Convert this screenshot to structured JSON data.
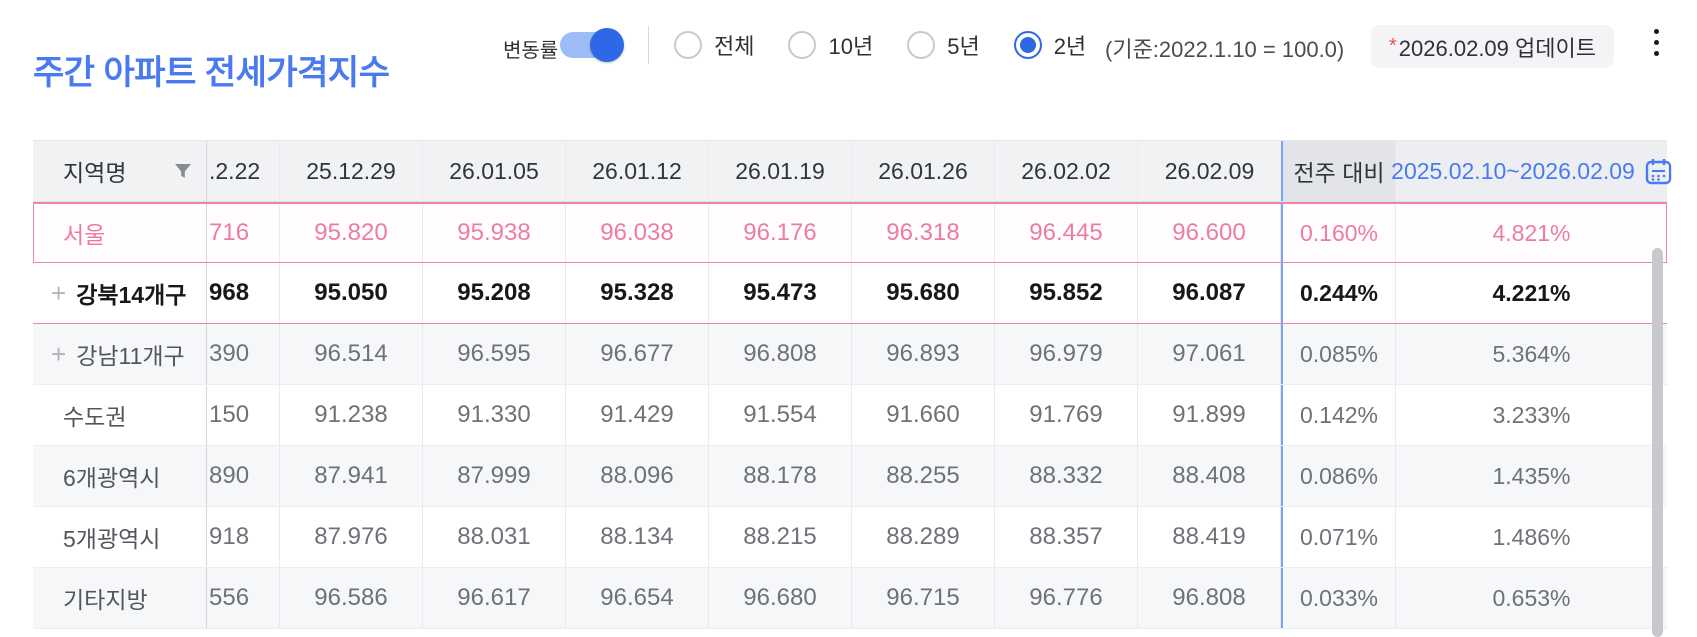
{
  "header": {
    "title": "주간 아파트 전세가격지수",
    "toggle_label": "변동률",
    "toggle_on": true,
    "periods": [
      {
        "label": "전체",
        "selected": false
      },
      {
        "label": "10년",
        "selected": false
      },
      {
        "label": "5년",
        "selected": false
      },
      {
        "label": "2년",
        "selected": true
      }
    ],
    "base_note": "(기준:2022.1.10 = 100.0)",
    "update_asterisk": "*",
    "update_text": "2026.02.09 업데이트"
  },
  "table": {
    "region_header": "지역명",
    "date_columns": [
      ".2.22",
      "25.12.29",
      "26.01.05",
      "26.01.12",
      "26.01.19",
      "26.01.26",
      "26.02.02",
      "26.02.09"
    ],
    "wow_header": "전주 대비",
    "range_header": "2025.02.10~2026.02.09",
    "rows": [
      {
        "region": "서울",
        "expandable": false,
        "style": "seoul",
        "values": [
          "716",
          "95.820",
          "95.938",
          "96.038",
          "96.176",
          "96.318",
          "96.445",
          "96.600"
        ],
        "wow": "0.160%",
        "range": "4.821%"
      },
      {
        "region": "강북14개구",
        "expandable": true,
        "style": "highlight",
        "values": [
          "968",
          "95.050",
          "95.208",
          "95.328",
          "95.473",
          "95.680",
          "95.852",
          "96.087"
        ],
        "wow": "0.244%",
        "range": "4.221%"
      },
      {
        "region": "강남11개구",
        "expandable": true,
        "style": "alt",
        "values": [
          "390",
          "96.514",
          "96.595",
          "96.677",
          "96.808",
          "96.893",
          "96.979",
          "97.061"
        ],
        "wow": "0.085%",
        "range": "5.364%"
      },
      {
        "region": "수도권",
        "expandable": false,
        "style": "plain",
        "values": [
          "150",
          "91.238",
          "91.330",
          "91.429",
          "91.554",
          "91.660",
          "91.769",
          "91.899"
        ],
        "wow": "0.142%",
        "range": "3.233%"
      },
      {
        "region": "6개광역시",
        "expandable": false,
        "style": "alt",
        "values": [
          "890",
          "87.941",
          "87.999",
          "88.096",
          "88.178",
          "88.255",
          "88.332",
          "88.408"
        ],
        "wow": "0.086%",
        "range": "1.435%"
      },
      {
        "region": "5개광역시",
        "expandable": false,
        "style": "plain",
        "values": [
          "918",
          "87.976",
          "88.031",
          "88.134",
          "88.215",
          "88.289",
          "88.357",
          "88.419"
        ],
        "wow": "0.071%",
        "range": "1.486%"
      },
      {
        "region": "기타지방",
        "expandable": false,
        "style": "alt",
        "values": [
          "556",
          "96.586",
          "96.617",
          "96.654",
          "96.680",
          "96.715",
          "96.776",
          "96.808"
        ],
        "wow": "0.033%",
        "range": "0.653%"
      }
    ]
  },
  "icons": {
    "expand": "+",
    "filter": "funnel-icon",
    "calendar": "calendar-icon",
    "more": "kebab-menu-icon"
  },
  "colors": {
    "accent_blue": "#4a7af0",
    "toggle_knob": "#2e68e6",
    "toggle_track": "#9cbcf6",
    "pink_text": "#ed7ca3",
    "pink_border": "#ee84a8",
    "blue_line": "#7aa3f3",
    "header_bg": "#f1f2f4",
    "wow_header_bg": "#e2e4e8",
    "range_header_bg": "#edeef1",
    "alt_row_bg": "#f6f7f9",
    "num_color": "#6e7177",
    "scrollbar": "#c8c9cd",
    "red_star": "#e8564f"
  }
}
